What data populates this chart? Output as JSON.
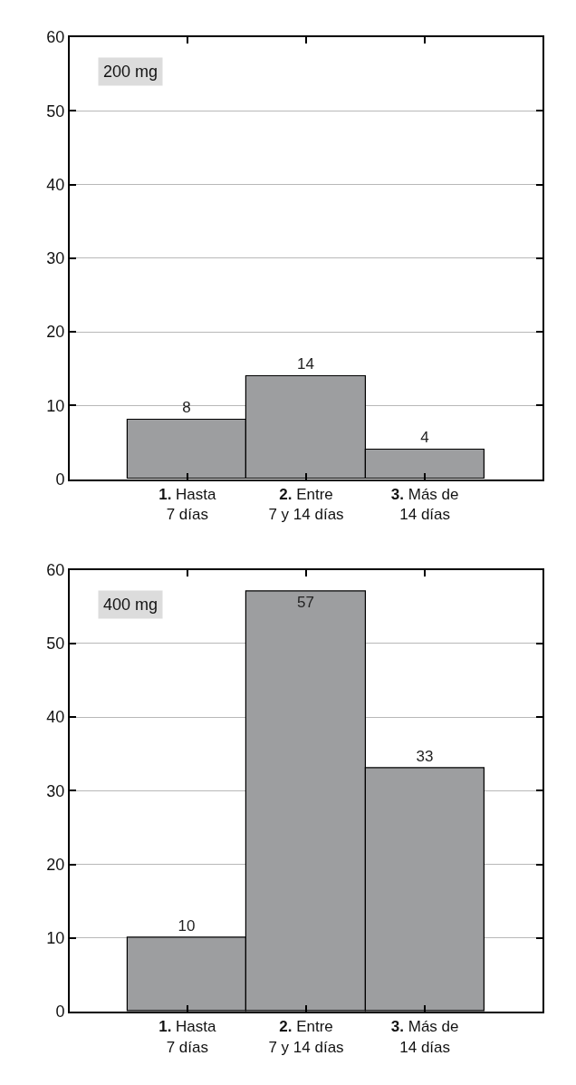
{
  "chart_data": [
    {
      "type": "bar",
      "title": "200 mg",
      "categories": [
        "1. Hasta\n7 días",
        "2. Entre\n7 y 14 días",
        "3. Más de\n14 días"
      ],
      "values": [
        8,
        14,
        4
      ],
      "color": "#9d9ea0",
      "ylim": [
        0,
        60
      ],
      "yticks": [
        0,
        10,
        20,
        30,
        40,
        50,
        60
      ],
      "grid": "y",
      "data_labels": true
    },
    {
      "type": "bar",
      "title": "400 mg",
      "categories": [
        "1. Hasta\n7 días",
        "2. Entre\n7 y 14 días",
        "3. Más de\n14 días"
      ],
      "values": [
        10,
        57,
        33
      ],
      "color": "#9d9ea0",
      "ylim": [
        0,
        60
      ],
      "yticks": [
        0,
        10,
        20,
        30,
        40,
        50,
        60
      ],
      "grid": "y",
      "data_labels": true
    }
  ]
}
